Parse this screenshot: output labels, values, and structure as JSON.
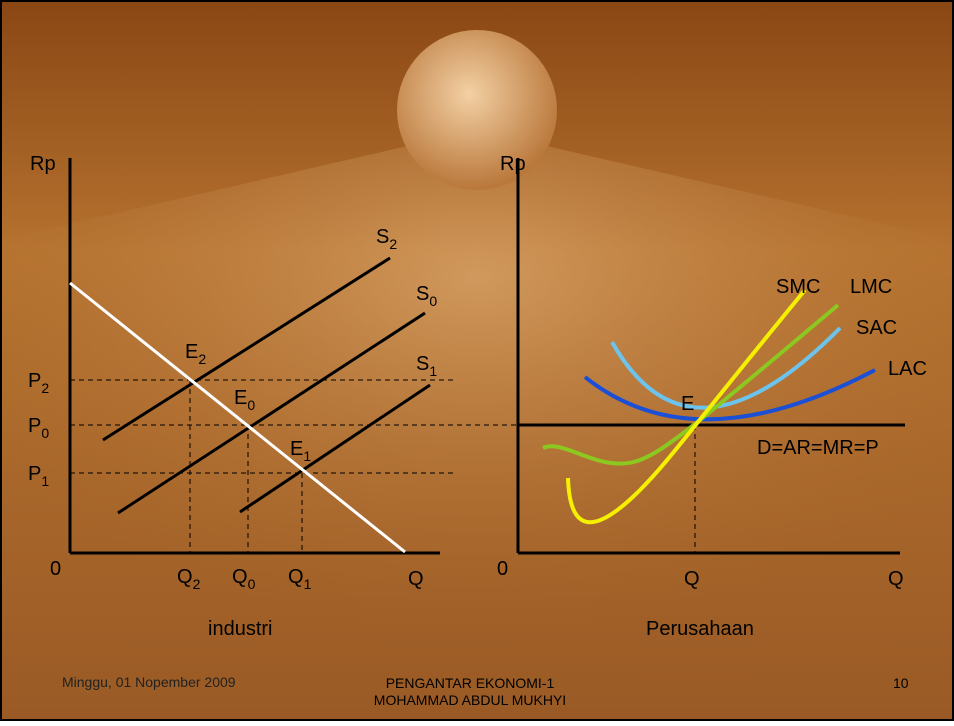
{
  "left_panel": {
    "y_axis_label": "Rp",
    "x_axis_label": "Q",
    "origin": "0",
    "caption": "industri",
    "price_labels": [
      {
        "base": "P",
        "sub": "2"
      },
      {
        "base": "P",
        "sub": "0"
      },
      {
        "base": "P",
        "sub": "1"
      }
    ],
    "quantity_labels": [
      {
        "base": "Q",
        "sub": "2"
      },
      {
        "base": "Q",
        "sub": "0"
      },
      {
        "base": "Q",
        "sub": "1"
      }
    ],
    "supply_labels": [
      {
        "base": "S",
        "sub": "2"
      },
      {
        "base": "S",
        "sub": "0"
      },
      {
        "base": "S",
        "sub": "1"
      }
    ],
    "equilibrium_labels": [
      {
        "base": "E",
        "sub": "2"
      },
      {
        "base": "E",
        "sub": "0"
      },
      {
        "base": "E",
        "sub": "1"
      }
    ]
  },
  "right_panel": {
    "y_axis_label": "Rp",
    "x_axis_label": "Q",
    "origin": "0",
    "caption": "Perusahaan",
    "curve_labels": [
      "SMC",
      "LMC",
      "SAC",
      "LAC"
    ],
    "equilibrium_label": "E",
    "demand_label": "D=AR=MR=P",
    "quantity_label": "Q"
  },
  "footer": {
    "date": "Minggu, 01 Nopember 2009",
    "title": "PENGANTAR EKONOMI-1",
    "author": "MOHAMMAD ABDUL MUKHYI",
    "page": "10"
  }
}
